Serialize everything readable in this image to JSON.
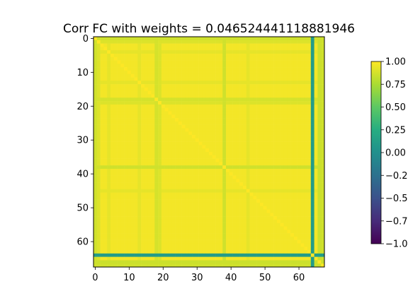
{
  "chart_data": {
    "type": "heatmap",
    "title": "Corr FC with weights = 0.046524441118881946",
    "size": 68,
    "value_range": [
      -1.0,
      1.0
    ],
    "colormap": "viridis",
    "x_ticks": [
      0,
      10,
      20,
      30,
      40,
      50,
      60
    ],
    "y_ticks": [
      0,
      10,
      20,
      30,
      40,
      50,
      60
    ],
    "colorbar_ticks": [
      "1.00",
      "0.75",
      "0.50",
      "0.25",
      "0.00",
      "−0.25",
      "−0.50",
      "−0.75",
      "−1.00"
    ],
    "colorbar_tick_values": [
      1.0,
      0.75,
      0.5,
      0.25,
      0.0,
      -0.25,
      -0.5,
      -0.75,
      -1.0
    ],
    "base_value": 0.97,
    "edge_rows_cols": {
      "indices": [
        0,
        67
      ],
      "value": 0.86
    },
    "weak_rows_cols": [
      {
        "index": 1,
        "value": 0.9
      },
      {
        "index": 4,
        "value": 0.93
      },
      {
        "index": 13,
        "value": 0.93
      },
      {
        "index": 18,
        "value": 0.88
      },
      {
        "index": 19,
        "value": 0.9
      },
      {
        "index": 38,
        "value": 0.86
      },
      {
        "index": 45,
        "value": 0.93
      },
      {
        "index": 66,
        "value": 0.85
      }
    ],
    "outlier_rows_cols": [
      {
        "index": 64,
        "value": 0.1
      }
    ],
    "diagonal_value": 1.0
  }
}
